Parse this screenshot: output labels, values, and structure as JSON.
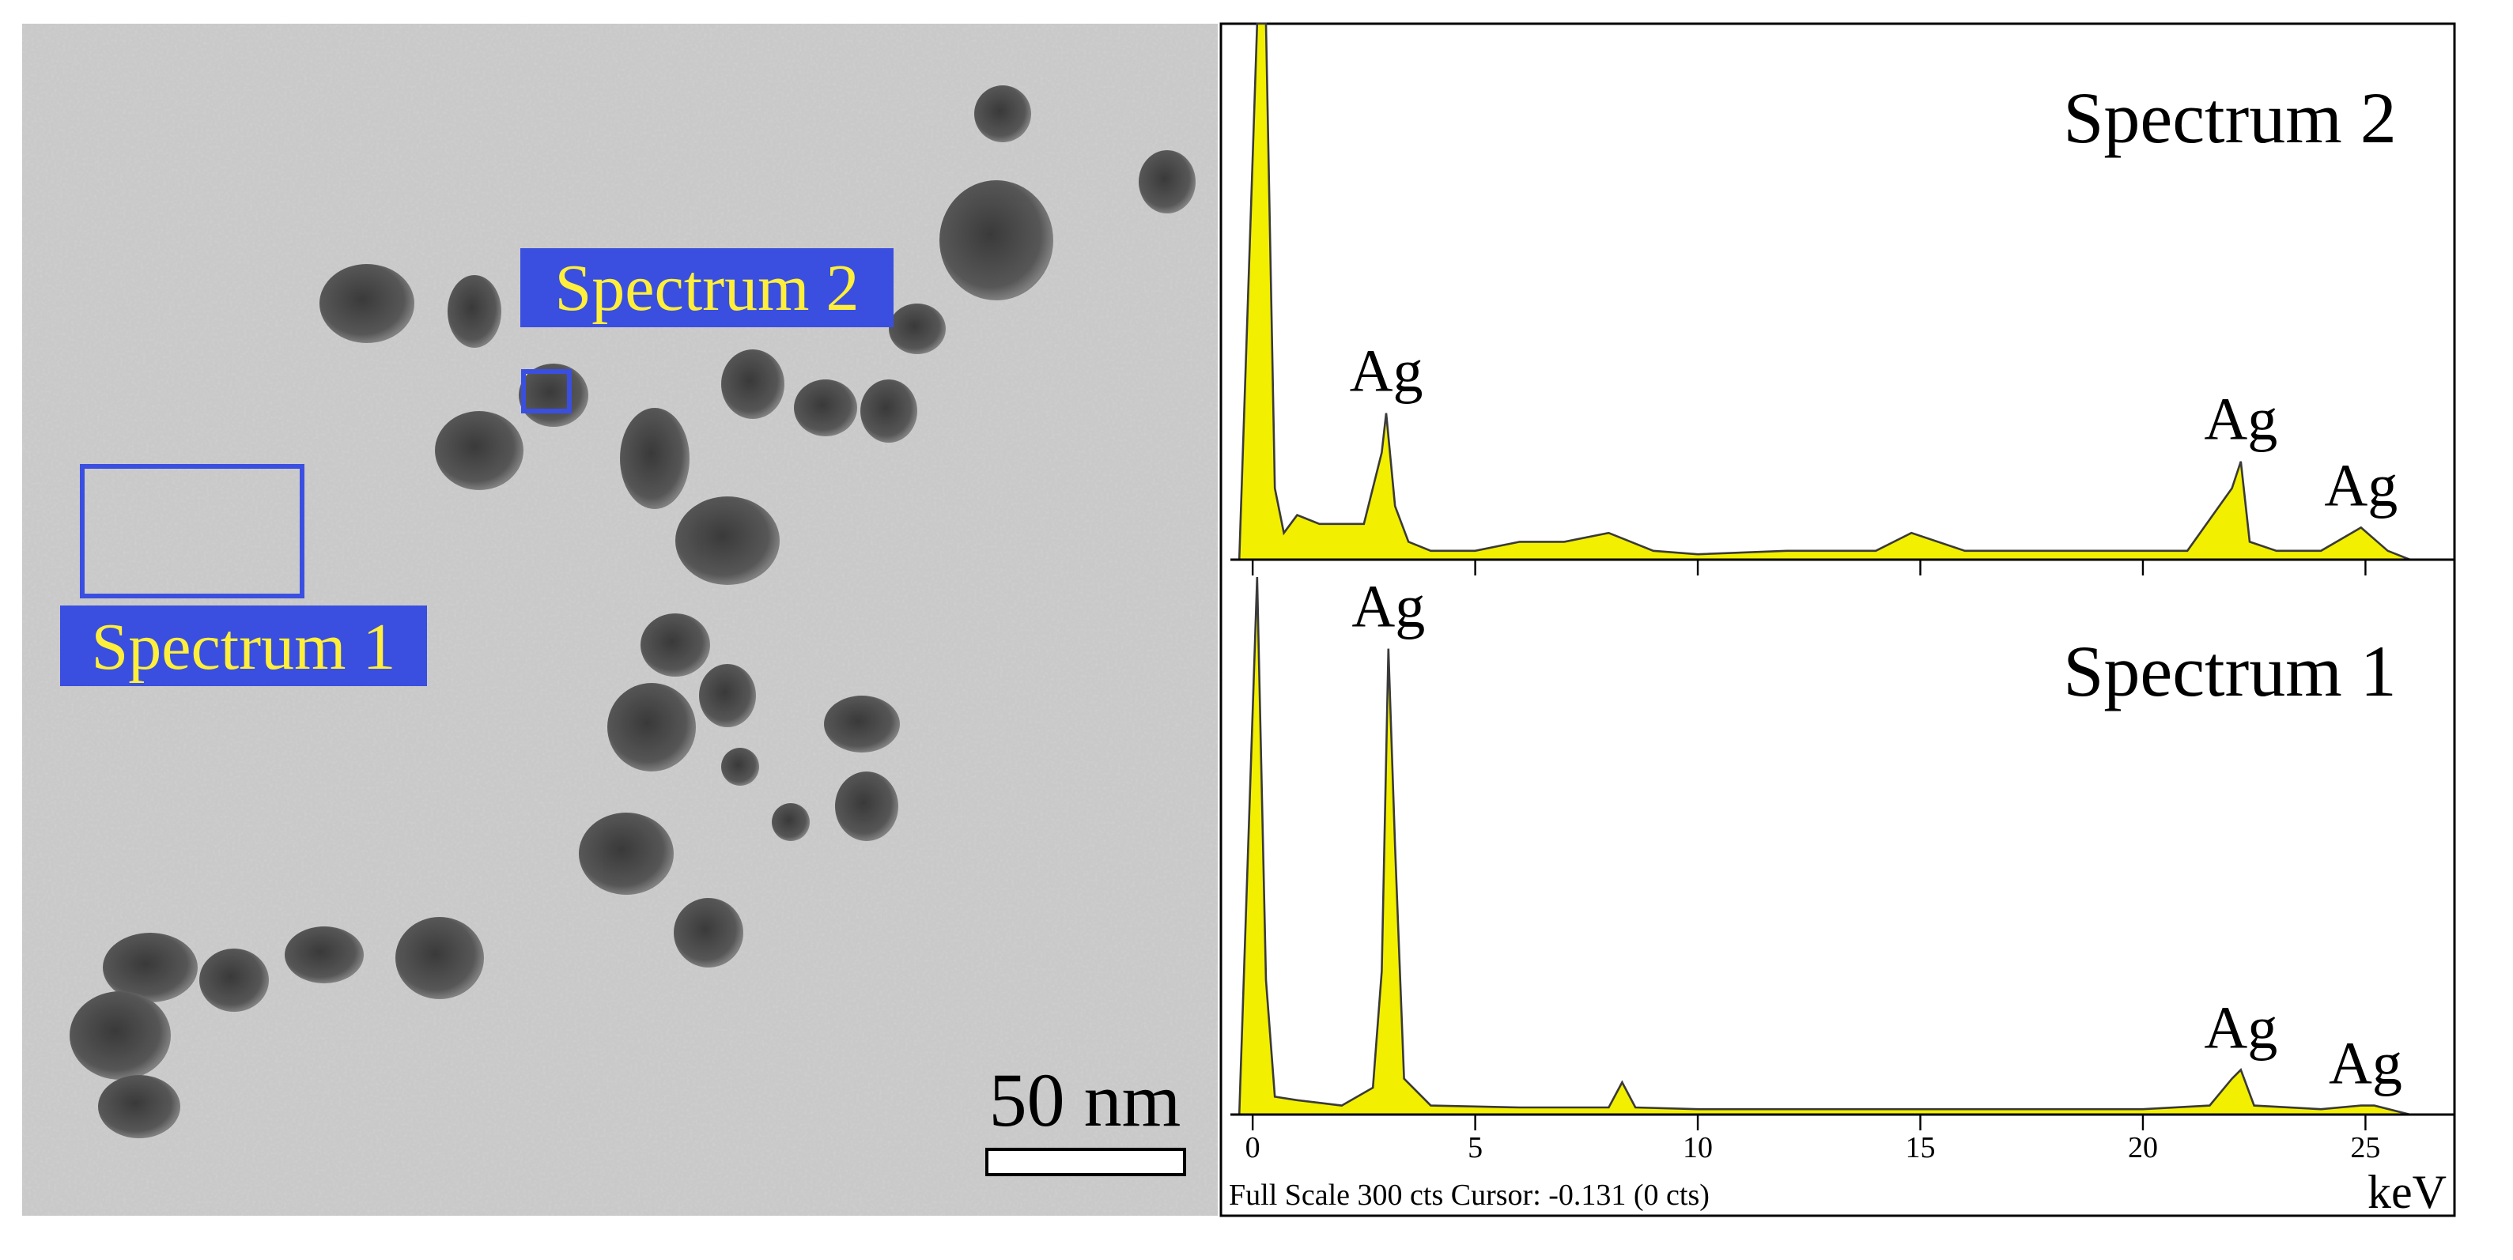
{
  "tem_image": {
    "labels": [
      "Spectrum 2",
      "Spectrum 1"
    ],
    "scale_bar": "50 nm"
  },
  "chart_data": [
    {
      "type": "area",
      "title": "Spectrum 2",
      "color": "#f2ef00",
      "x": [
        -0.3,
        0.1,
        0.3,
        0.5,
        0.7,
        1,
        1.5,
        2,
        2.5,
        2.9,
        3.0,
        3.2,
        3.5,
        4,
        5,
        6,
        7,
        8,
        9,
        10,
        12,
        14,
        14.8,
        16,
        17.5,
        19,
        20,
        21,
        22.0,
        22.2,
        22.4,
        23,
        24,
        24.9,
        25.5,
        26
      ],
      "values": [
        0,
        300,
        300,
        40,
        15,
        25,
        20,
        20,
        20,
        60,
        82,
        30,
        10,
        5,
        5,
        10,
        10,
        15,
        5,
        3,
        5,
        5,
        15,
        5,
        5,
        5,
        5,
        5,
        40,
        55,
        10,
        5,
        5,
        18,
        5,
        0
      ],
      "xlim": [
        -0.5,
        27
      ],
      "ylim": [
        0,
        300
      ],
      "xticks": [
        0,
        5,
        10,
        15,
        20,
        25
      ],
      "annotations": [
        {
          "text": "Ag",
          "x": 3.0
        },
        {
          "text": "Ag",
          "x": 22.2
        },
        {
          "text": "Ag",
          "x": 24.9
        }
      ]
    },
    {
      "type": "area",
      "title": "Spectrum 1",
      "color": "#f2ef00",
      "x": [
        -0.3,
        0.1,
        0.3,
        0.5,
        1,
        2,
        2.7,
        2.9,
        3.05,
        3.2,
        3.4,
        4,
        6,
        8,
        8.3,
        8.6,
        10,
        15,
        20,
        21.5,
        22.0,
        22.2,
        22.5,
        24,
        24.9,
        25.2,
        26
      ],
      "values": [
        0,
        300,
        75,
        10,
        8,
        5,
        15,
        80,
        260,
        150,
        20,
        5,
        4,
        4,
        18,
        4,
        3,
        3,
        3,
        5,
        20,
        25,
        5,
        3,
        5,
        5,
        0
      ],
      "xlim": [
        -0.5,
        27
      ],
      "ylim": [
        0,
        300
      ],
      "xticks": [
        0,
        5,
        10,
        15,
        20,
        25
      ],
      "xlabel": "keV",
      "footer": "Full Scale 300 cts Cursor: -0.131 (0 cts)",
      "annotations": [
        {
          "text": "Ag",
          "x": 3.05
        },
        {
          "text": "Ag",
          "x": 22.2
        },
        {
          "text": "Ag",
          "x": 25.0
        }
      ]
    }
  ]
}
